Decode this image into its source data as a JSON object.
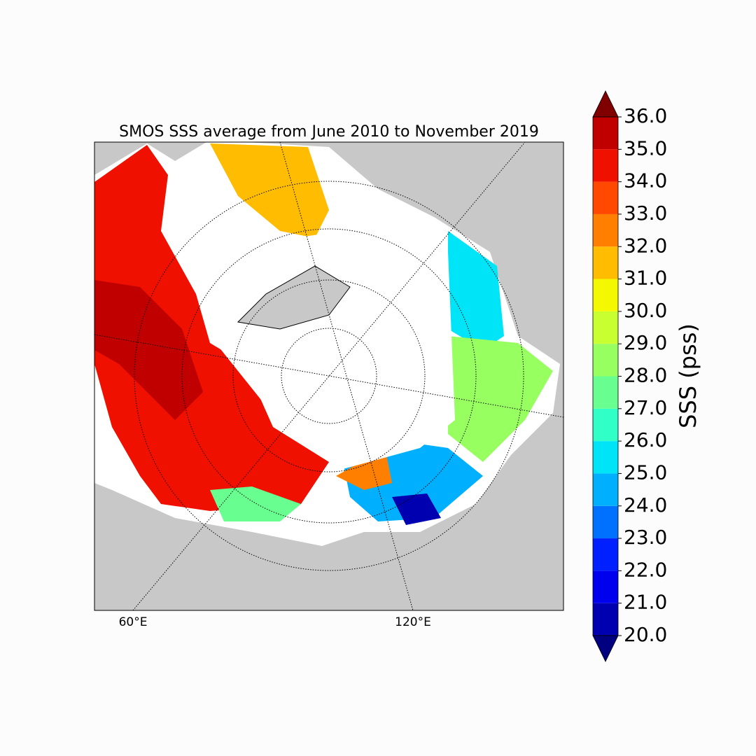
{
  "title": "SMOS SSS average from June 2010 to November 2019",
  "map": {
    "longitude_labels": [
      "60°E",
      "120°E"
    ]
  },
  "colorbar": {
    "label": "SSS (pss)",
    "lim": [
      20,
      36
    ],
    "ticks": [
      {
        "value": 20,
        "label": "20.0"
      },
      {
        "value": 21,
        "label": "21.0"
      },
      {
        "value": 22,
        "label": "22.0"
      },
      {
        "value": 23,
        "label": "23.0"
      },
      {
        "value": 24,
        "label": "24.0"
      },
      {
        "value": 25,
        "label": "25.0"
      },
      {
        "value": 26,
        "label": "26.0"
      },
      {
        "value": 27,
        "label": "27.0"
      },
      {
        "value": 28,
        "label": "28.0"
      },
      {
        "value": 29,
        "label": "29.0"
      },
      {
        "value": 30,
        "label": "30.0"
      },
      {
        "value": 31,
        "label": "31.0"
      },
      {
        "value": 32,
        "label": "32.0"
      },
      {
        "value": 33,
        "label": "33.0"
      },
      {
        "value": 34,
        "label": "34.0"
      },
      {
        "value": 35,
        "label": "35.0"
      },
      {
        "value": 36,
        "label": "36.0"
      }
    ],
    "colors": [
      "#0000b0",
      "#0000ee",
      "#0020ff",
      "#0070ff",
      "#00b0ff",
      "#00e4f8",
      "#30ffc8",
      "#68ff90",
      "#98ff60",
      "#c8ff30",
      "#f4f800",
      "#ffbc00",
      "#ff8000",
      "#ff4800",
      "#f01000",
      "#c00000"
    ],
    "under_color": "#000080",
    "over_color": "#800000"
  }
}
